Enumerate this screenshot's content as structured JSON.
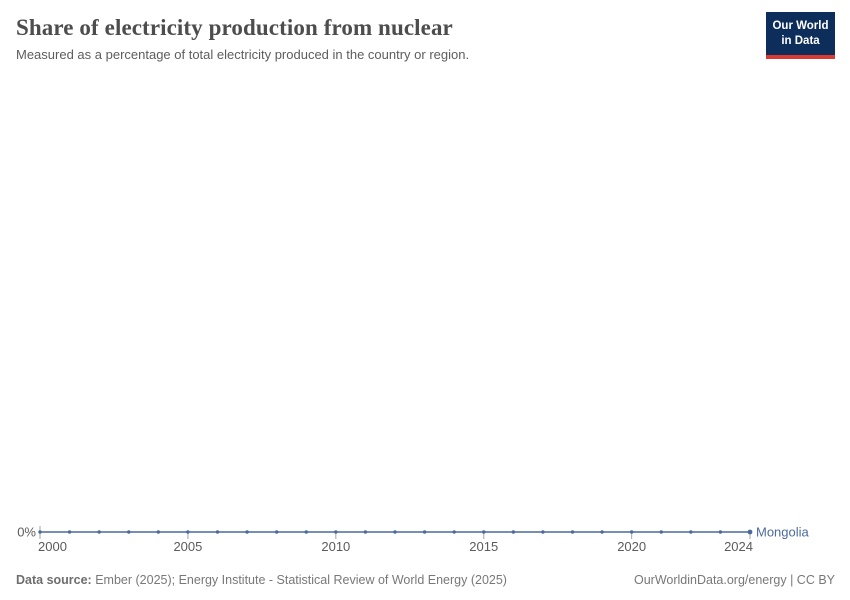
{
  "header": {
    "title": "Share of electricity production from nuclear",
    "subtitle": "Measured as a percentage of total electricity produced in the country or region.",
    "logo": {
      "line1": "Our World",
      "line2": "in Data"
    }
  },
  "chart_data": {
    "type": "line",
    "title": "Share of electricity production from nuclear",
    "xlabel": "",
    "ylabel": "",
    "x": [
      2000,
      2001,
      2002,
      2003,
      2004,
      2005,
      2006,
      2007,
      2008,
      2009,
      2010,
      2011,
      2012,
      2013,
      2014,
      2015,
      2016,
      2017,
      2018,
      2019,
      2020,
      2021,
      2022,
      2023,
      2024
    ],
    "series": [
      {
        "name": "Mongolia",
        "color": "#4C6A9C",
        "values": [
          0,
          0,
          0,
          0,
          0,
          0,
          0,
          0,
          0,
          0,
          0,
          0,
          0,
          0,
          0,
          0,
          0,
          0,
          0,
          0,
          0,
          0,
          0,
          0,
          0
        ]
      }
    ],
    "xlim": [
      2000,
      2024
    ],
    "ylim": [
      0,
      0
    ],
    "x_ticks": [
      2000,
      2005,
      2010,
      2015,
      2020,
      2024
    ],
    "y_tick_labels": [
      "0%"
    ],
    "grid": false,
    "legend_position": "inline-end-of-line"
  },
  "colors": {
    "line": "#4C6A9C",
    "tick_text": "#5b5b5b",
    "tick_mark": "#a5a5a5",
    "logo_bg": "#0d2e5a",
    "logo_bar": "#d93a34"
  },
  "footer": {
    "datasource_label": "Data source:",
    "datasource_text": " Ember (2025); Energy Institute - Statistical Review of World Energy (2025)",
    "right_text": "OurWorldinData.org/energy | CC BY"
  }
}
